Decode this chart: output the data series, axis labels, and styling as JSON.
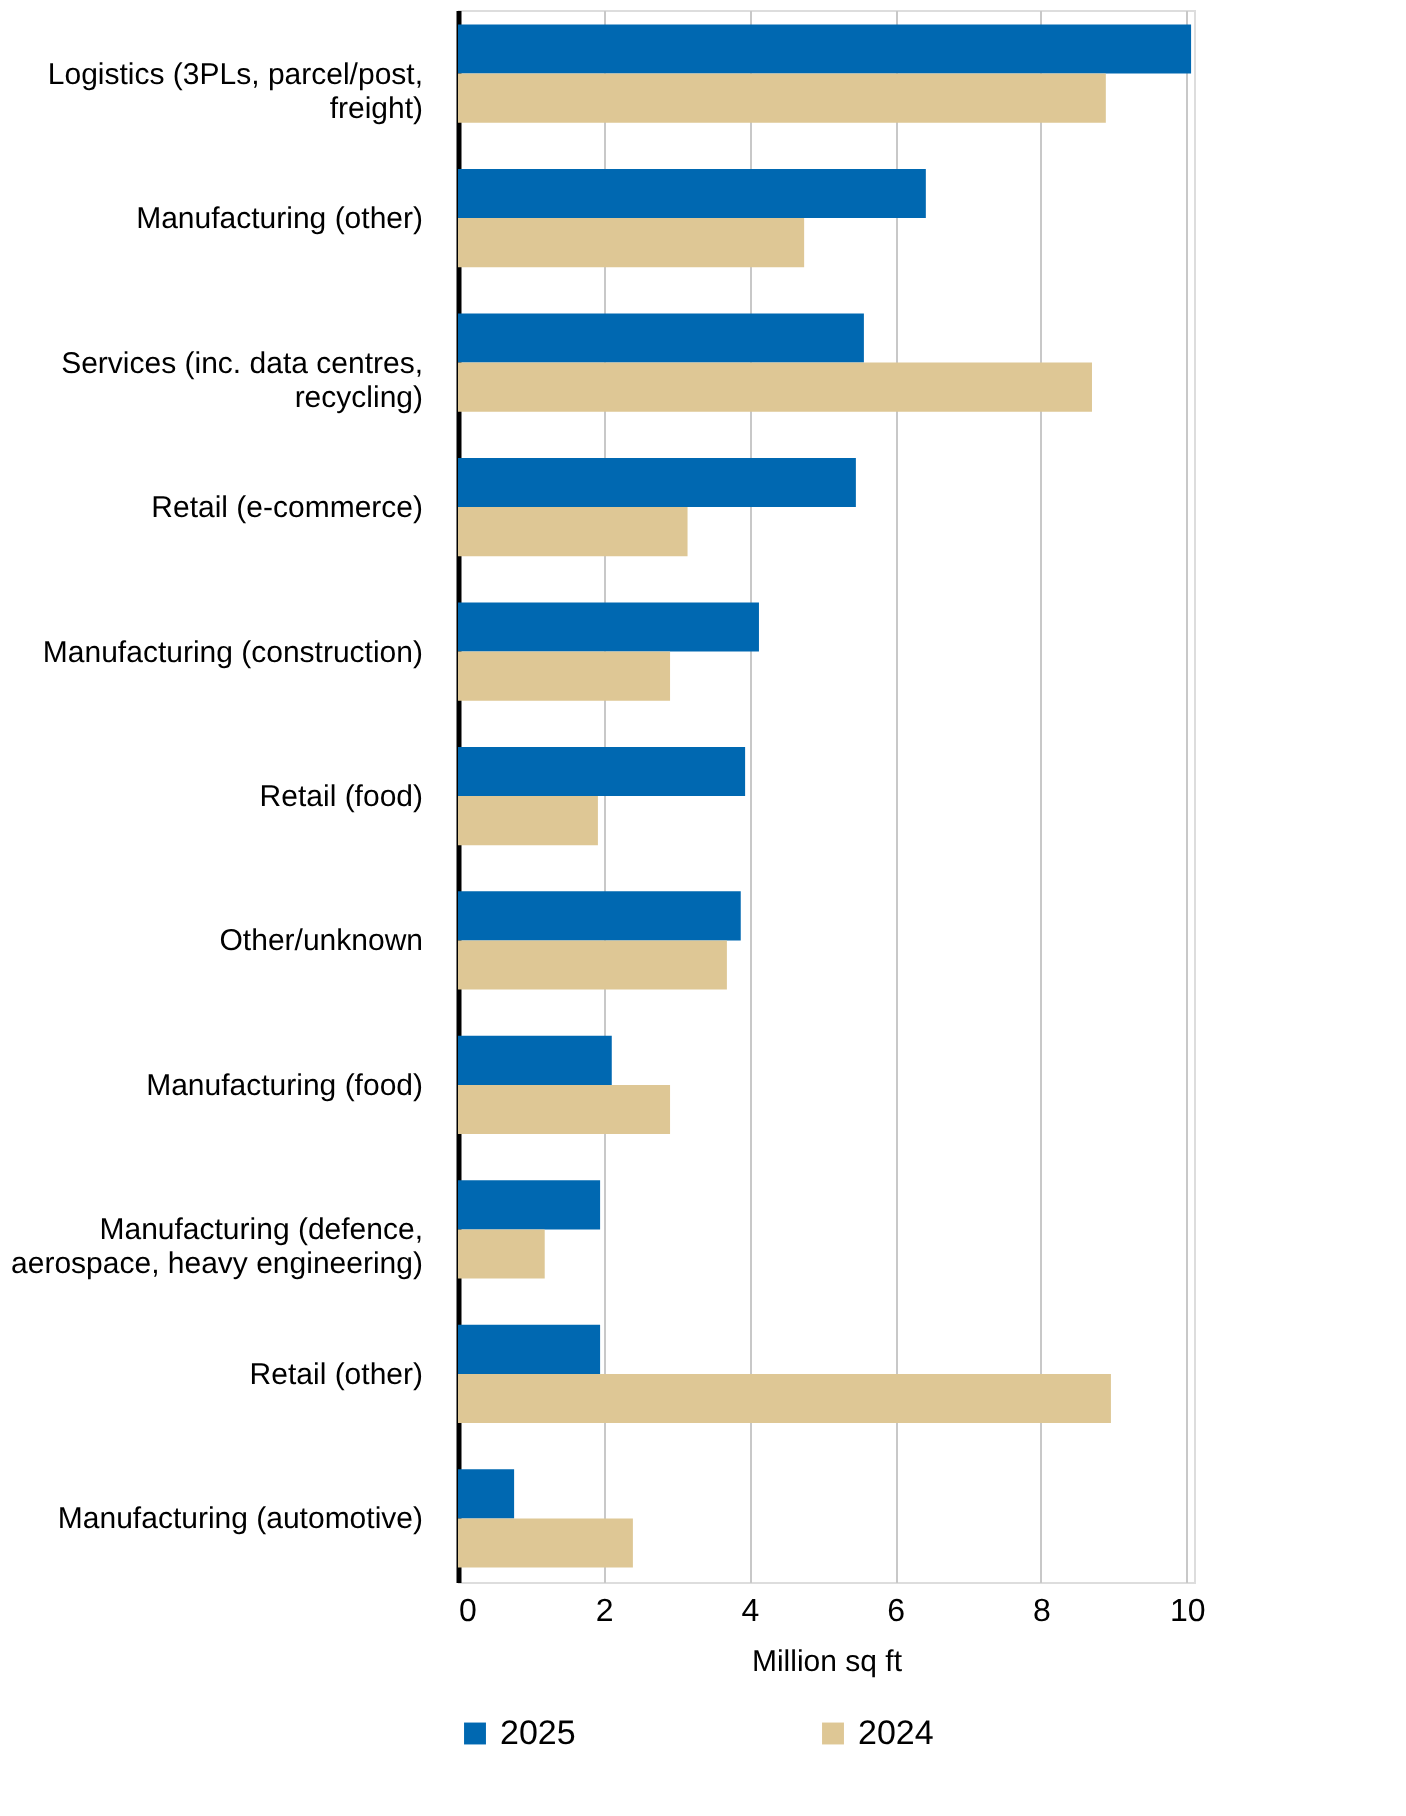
{
  "chart_data": {
    "type": "bar",
    "orientation": "horizontal",
    "xlabel": "Million sq ft",
    "categories": [
      "Logistics (3PLs, parcel/post, freight)",
      "Manufacturing (other)",
      "Services (inc. data centres, recycling)",
      "Retail (e-commerce)",
      "Manufacturing (construction)",
      "Retail (food)",
      "Other/unknown",
      "Manufacturing (food)",
      "Manufacturing (defence, aerospace, heavy engineering)",
      "Retail (other)",
      "Manufacturing (automotive)"
    ],
    "series": [
      {
        "name": "2025",
        "color": "#0068b1",
        "values": [
          10.06,
          6.42,
          5.57,
          5.46,
          4.13,
          3.94,
          3.88,
          2.11,
          1.95,
          1.95,
          0.77
        ]
      },
      {
        "name": "2024",
        "color": "#dec795",
        "values": [
          8.89,
          4.75,
          8.7,
          3.15,
          2.91,
          1.92,
          3.69,
          2.91,
          1.19,
          8.96,
          2.4
        ]
      }
    ],
    "xlim": [
      0,
      10.1
    ],
    "xticks": [
      0,
      2,
      4,
      6,
      8,
      10
    ],
    "grid": "x",
    "legend": "bottom"
  }
}
